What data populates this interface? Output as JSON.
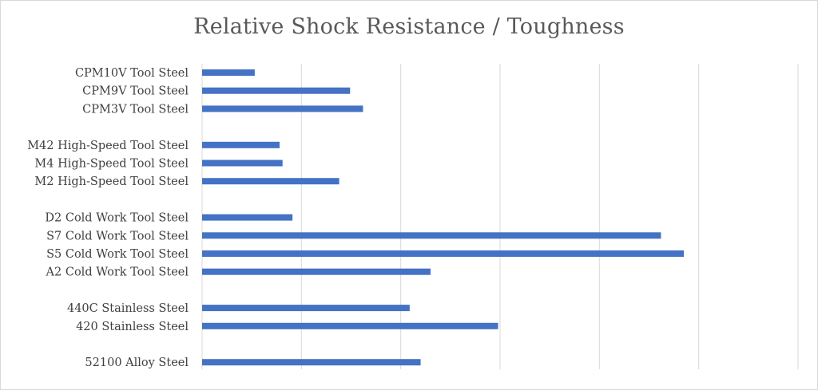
{
  "chart_data": {
    "type": "bar",
    "orientation": "horizontal",
    "title": "Relative Shock Resistance / Toughness",
    "xlabel": "",
    "ylabel": "",
    "xlim": [
      0,
      6
    ],
    "grid": true,
    "legend": "none",
    "bar_color": "#4472c4",
    "gridline_color": "#d9d9d9",
    "categories": [
      "CPM10V Tool Steel",
      "CPM9V Tool Steel",
      "CPM3V Tool Steel",
      "",
      "M42 High-Speed Tool Steel",
      "M4 High-Speed Tool Steel",
      "M2 High-Speed Tool Steel",
      "",
      "D2 Cold Work Tool Steel",
      "S7 Cold Work Tool Steel",
      "S5 Cold Work Tool Steel",
      "A2 Cold Work Tool Steel",
      "",
      "440C Stainless Steel",
      "420 Stainless Steel",
      "",
      "52100 Alloy Steel"
    ],
    "values": [
      0.53,
      1.49,
      1.62,
      null,
      0.78,
      0.81,
      1.38,
      null,
      0.91,
      4.62,
      4.85,
      2.3,
      null,
      2.09,
      2.98,
      null,
      2.2
    ]
  }
}
